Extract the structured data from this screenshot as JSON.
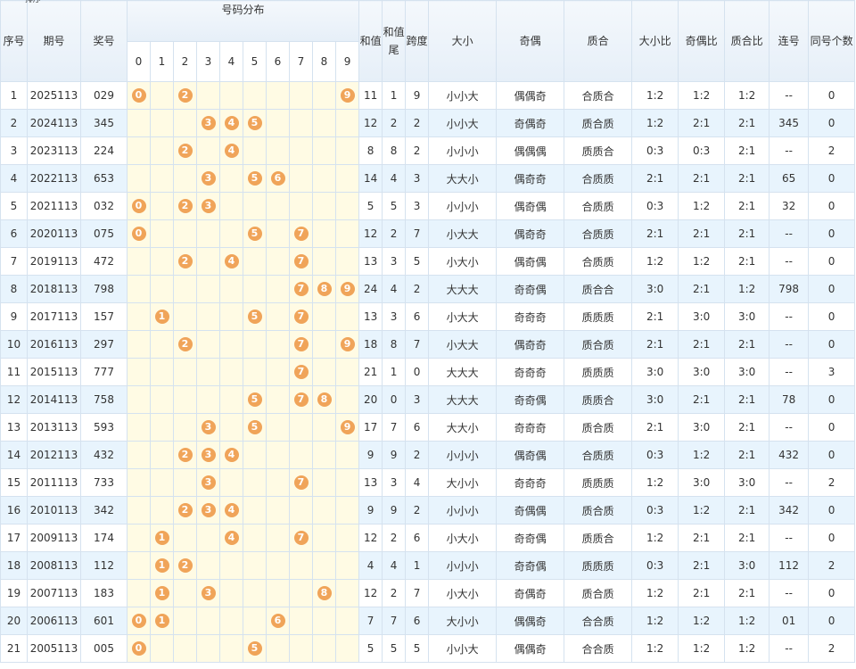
{
  "table": {
    "headers": {
      "seq": "序号",
      "issue": "期号",
      "sort": "排序",
      "number": "奖号",
      "dist": "号码分布",
      "digits": [
        "0",
        "1",
        "2",
        "3",
        "4",
        "5",
        "6",
        "7",
        "8",
        "9"
      ],
      "rest": [
        "和值",
        "和值尾",
        "跨度",
        "大小",
        "奇偶",
        "质合",
        "大小比",
        "奇偶比",
        "质合比",
        "连号",
        "同号个数"
      ]
    },
    "rows": [
      [
        1,
        "2025113",
        "029",
        [
          0,
          2,
          9
        ],
        11,
        1,
        9,
        "小小大",
        "偶偶奇",
        "合质合",
        "1:2",
        "1:2",
        "1:2",
        "--",
        0
      ],
      [
        2,
        "2024113",
        "345",
        [
          3,
          4,
          5
        ],
        12,
        2,
        2,
        "小小大",
        "奇偶奇",
        "质合质",
        "1:2",
        "2:1",
        "2:1",
        "345",
        0
      ],
      [
        3,
        "2023113",
        "224",
        [
          2,
          4
        ],
        8,
        8,
        2,
        "小小小",
        "偶偶偶",
        "质质合",
        "0:3",
        "0:3",
        "2:1",
        "--",
        2
      ],
      [
        4,
        "2022113",
        "653",
        [
          3,
          5,
          6
        ],
        14,
        4,
        3,
        "大大小",
        "偶奇奇",
        "合质质",
        "2:1",
        "2:1",
        "2:1",
        "65",
        0
      ],
      [
        5,
        "2021113",
        "032",
        [
          0,
          2,
          3
        ],
        5,
        5,
        3,
        "小小小",
        "偶奇偶",
        "合质质",
        "0:3",
        "1:2",
        "2:1",
        "32",
        0
      ],
      [
        6,
        "2020113",
        "075",
        [
          0,
          5,
          7
        ],
        12,
        2,
        7,
        "小大大",
        "偶奇奇",
        "合质质",
        "2:1",
        "2:1",
        "2:1",
        "--",
        0
      ],
      [
        7,
        "2019113",
        "472",
        [
          2,
          4,
          7
        ],
        13,
        3,
        5,
        "小大小",
        "偶奇偶",
        "合质质",
        "1:2",
        "1:2",
        "2:1",
        "--",
        0
      ],
      [
        8,
        "2018113",
        "798",
        [
          7,
          8,
          9
        ],
        24,
        4,
        2,
        "大大大",
        "奇奇偶",
        "质合合",
        "3:0",
        "2:1",
        "1:2",
        "798",
        0
      ],
      [
        9,
        "2017113",
        "157",
        [
          1,
          5,
          7
        ],
        13,
        3,
        6,
        "小大大",
        "奇奇奇",
        "质质质",
        "2:1",
        "3:0",
        "3:0",
        "--",
        0
      ],
      [
        10,
        "2016113",
        "297",
        [
          2,
          7,
          9
        ],
        18,
        8,
        7,
        "小大大",
        "偶奇奇",
        "质合质",
        "2:1",
        "2:1",
        "2:1",
        "--",
        0
      ],
      [
        11,
        "2015113",
        "777",
        [
          7
        ],
        21,
        1,
        0,
        "大大大",
        "奇奇奇",
        "质质质",
        "3:0",
        "3:0",
        "3:0",
        "--",
        3
      ],
      [
        12,
        "2014113",
        "758",
        [
          5,
          7,
          8
        ],
        20,
        0,
        3,
        "大大大",
        "奇奇偶",
        "质质合",
        "3:0",
        "2:1",
        "2:1",
        "78",
        0
      ],
      [
        13,
        "2013113",
        "593",
        [
          3,
          5,
          9
        ],
        17,
        7,
        6,
        "大大小",
        "奇奇奇",
        "质合质",
        "2:1",
        "3:0",
        "2:1",
        "--",
        0
      ],
      [
        14,
        "2012113",
        "432",
        [
          2,
          3,
          4
        ],
        9,
        9,
        2,
        "小小小",
        "偶奇偶",
        "合质质",
        "0:3",
        "1:2",
        "2:1",
        "432",
        0
      ],
      [
        15,
        "2011113",
        "733",
        [
          3,
          7
        ],
        13,
        3,
        4,
        "大小小",
        "奇奇奇",
        "质质质",
        "1:2",
        "3:0",
        "3:0",
        "--",
        2
      ],
      [
        16,
        "2010113",
        "342",
        [
          2,
          3,
          4
        ],
        9,
        9,
        2,
        "小小小",
        "奇偶偶",
        "质合质",
        "0:3",
        "1:2",
        "2:1",
        "342",
        0
      ],
      [
        17,
        "2009113",
        "174",
        [
          1,
          4,
          7
        ],
        12,
        2,
        6,
        "小大小",
        "奇奇偶",
        "质质合",
        "1:2",
        "2:1",
        "2:1",
        "--",
        0
      ],
      [
        18,
        "2008113",
        "112",
        [
          1,
          2
        ],
        4,
        4,
        1,
        "小小小",
        "奇奇偶",
        "质质质",
        "0:3",
        "2:1",
        "3:0",
        "112",
        2
      ],
      [
        19,
        "2007113",
        "183",
        [
          1,
          3,
          8
        ],
        12,
        2,
        7,
        "小大小",
        "奇偶奇",
        "质合质",
        "1:2",
        "2:1",
        "2:1",
        "--",
        0
      ],
      [
        20,
        "2006113",
        "601",
        [
          0,
          1,
          6
        ],
        7,
        7,
        6,
        "大小小",
        "偶偶奇",
        "合合质",
        "1:2",
        "1:2",
        "1:2",
        "01",
        0
      ],
      [
        21,
        "2005113",
        "005",
        [
          0,
          5
        ],
        5,
        5,
        5,
        "小小大",
        "偶偶奇",
        "合合质",
        "1:2",
        "1:2",
        "1:2",
        "--",
        2
      ]
    ]
  }
}
